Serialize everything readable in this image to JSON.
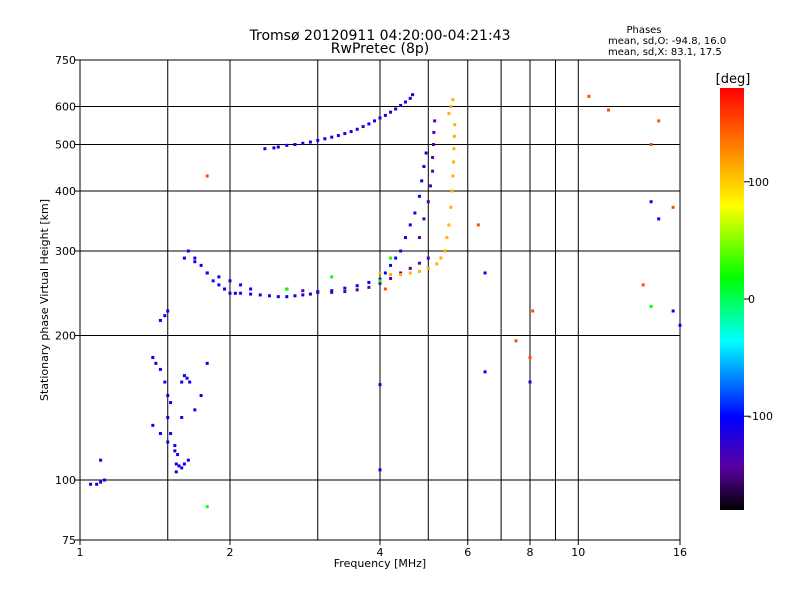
{
  "chart_data": {
    "type": "scatter",
    "title": "Tromsø 20120911 04:20:00-04:21:43",
    "subtitle": "RwPretec (8p)",
    "xlabel": "Frequency [MHz]",
    "ylabel": "Stationary phase Virtual Height [km]",
    "x_scale": "log2",
    "y_scale": "log",
    "xlim": [
      1,
      16
    ],
    "ylim": [
      75,
      750
    ],
    "x_ticks": [
      1,
      2,
      4,
      6,
      8,
      10,
      16
    ],
    "x_grid": [
      1.5,
      2,
      3,
      4,
      5,
      6,
      7,
      8,
      9,
      10
    ],
    "y_ticks": [
      75,
      100,
      200,
      300,
      400,
      500,
      600,
      750
    ],
    "y_grid": [
      100,
      200,
      300,
      400,
      500,
      600
    ],
    "stats": {
      "header": "Phases",
      "line_o": "mean, sd,O: -94.8, 16.0",
      "line_x": "mean, sd,X:  83.1, 17.5"
    },
    "colorbar": {
      "label": "[deg]",
      "min": -180,
      "max": 180,
      "ticks": [
        100,
        0,
        -100
      ],
      "colormap": "rainbow"
    },
    "series": [
      {
        "phase_deg": -110,
        "x": [
          1.05,
          1.08,
          1.1,
          1.12,
          1.1,
          1.4,
          1.45,
          1.5,
          1.55,
          1.6,
          1.7,
          1.75,
          1.8,
          1.4,
          1.42,
          1.45,
          1.48,
          1.5,
          1.52,
          1.5,
          1.52,
          1.55,
          1.57,
          1.56,
          1.58,
          1.56,
          1.6,
          1.62,
          1.65,
          1.6,
          1.62,
          1.64,
          1.66,
          1.62,
          1.65,
          1.7,
          1.75,
          1.8,
          1.85,
          1.9,
          1.95,
          2.0,
          1.7,
          1.8,
          1.9,
          2.0,
          2.1,
          2.2,
          2.05,
          2.1,
          2.2,
          2.3,
          2.4,
          2.5,
          2.6,
          2.7,
          2.8,
          2.9,
          3.0,
          3.2,
          3.4,
          3.6,
          3.8,
          4.0,
          4.1,
          4.2,
          4.3,
          4.4,
          4.5,
          4.6,
          4.7,
          4.8,
          4.85,
          4.9,
          4.95,
          2.35,
          2.45,
          2.5,
          2.6,
          2.7,
          2.8,
          2.9,
          3.0,
          3.1,
          3.2,
          3.3,
          3.4,
          3.5,
          3.6,
          3.7,
          3.8,
          3.9,
          4.0,
          4.1,
          4.2,
          4.3,
          4.4,
          4.5,
          4.6,
          4.65,
          1.45,
          1.48,
          1.5,
          4.0,
          4.0,
          6.5,
          6.5,
          8.0,
          15.5,
          16.0,
          14.5,
          14.0
        ],
        "y": [
          98,
          98,
          99,
          100,
          110,
          130,
          125,
          120,
          115,
          135,
          140,
          150,
          175,
          180,
          175,
          170,
          160,
          150,
          145,
          135,
          125,
          118,
          113,
          108,
          107,
          104,
          106,
          108,
          110,
          160,
          165,
          163,
          160,
          290,
          300,
          290,
          280,
          270,
          260,
          255,
          250,
          245,
          285,
          270,
          265,
          260,
          255,
          250,
          245,
          245,
          244,
          243,
          242,
          241,
          241,
          242,
          243,
          244,
          246,
          248,
          251,
          254,
          258,
          262,
          270,
          280,
          290,
          300,
          320,
          340,
          360,
          390,
          420,
          450,
          480,
          490,
          492,
          494,
          498,
          500,
          503,
          506,
          510,
          514,
          518,
          522,
          527,
          532,
          538,
          545,
          552,
          560,
          568,
          575,
          584,
          593,
          603,
          613,
          624,
          635,
          215,
          220,
          225,
          158,
          105,
          270,
          168,
          160,
          225,
          210,
          350,
          380
        ]
      },
      {
        "phase_deg": -140,
        "x": [
          2.6,
          2.8,
          3.0,
          3.2,
          3.4,
          3.6,
          3.8,
          4.0,
          4.2,
          4.4,
          4.6,
          4.8,
          5.0,
          4.8,
          4.9,
          5.0,
          5.05,
          5.1,
          5.1,
          5.12,
          5.13,
          5.15
        ],
        "y": [
          250,
          248,
          247,
          246,
          247,
          249,
          252,
          257,
          263,
          270,
          276,
          283,
          290,
          320,
          350,
          380,
          410,
          440,
          470,
          500,
          530,
          560
        ]
      },
      {
        "phase_deg": 110,
        "x": [
          4.0,
          4.2,
          4.4,
          4.6,
          4.8,
          5.0,
          5.2,
          5.3,
          5.4,
          5.45,
          5.5,
          5.55,
          5.58,
          5.6,
          5.62,
          5.63,
          5.64,
          5.65,
          5.5,
          5.55,
          5.6
        ],
        "y": [
          270,
          268,
          268,
          270,
          272,
          276,
          282,
          290,
          300,
          320,
          340,
          370,
          400,
          430,
          460,
          490,
          520,
          550,
          580,
          600,
          620
        ]
      },
      {
        "phase_deg": 150,
        "x": [
          1.8,
          4.1,
          6.3,
          7.5,
          8.0,
          8.1,
          10.5,
          11.5,
          13.5,
          14.5,
          14.0,
          15.5
        ],
        "y": [
          430,
          250,
          340,
          195,
          180,
          225,
          630,
          590,
          255,
          560,
          500,
          370
        ]
      },
      {
        "phase_deg": 20,
        "x": [
          4.0,
          4.2,
          2.6,
          3.2,
          14.0,
          1.8
        ],
        "y": [
          260,
          290,
          250,
          265,
          230,
          88
        ]
      }
    ]
  }
}
